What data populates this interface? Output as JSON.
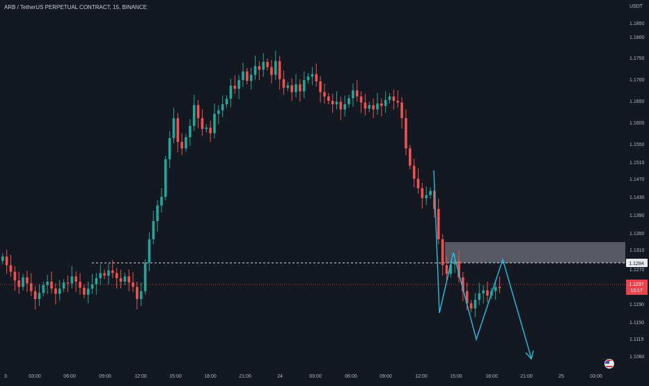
{
  "header": {
    "title": "ARB / TetherUS PERPETUAL CONTRACT, 15, BINANCE",
    "currency": "USDT"
  },
  "colors": {
    "background": "#141821",
    "up": "#26a69a",
    "down": "#ef5350",
    "axis_text": "#b2b7c2",
    "pattern": "#29b6d9",
    "zone": "#8c9099",
    "price_line": "#e8424b",
    "dashed_line": "#d8dbe0"
  },
  "chart_data": {
    "type": "candlestick",
    "price_axis": {
      "ticks": [
        "1.1850",
        "1.1800",
        "1.1750",
        "1.1700",
        "1.1650",
        "1.1600",
        "1.1550",
        "1.1510",
        "1.1470",
        "1.1430",
        "1.1390",
        "1.1350",
        "1.1310",
        "1.1270",
        "1.1190",
        "1.1150",
        "1.1115",
        "1.1080"
      ]
    },
    "time_axis": {
      "ticks": [
        "3",
        "03:00",
        "06:00",
        "09:00",
        "12:00",
        "15:00",
        "18:00",
        "21:00",
        "24",
        "03:00",
        "06:00",
        "09:00",
        "12:00",
        "15:00",
        "18:00",
        "21:00",
        "25",
        "03:00"
      ]
    },
    "current_price": {
      "value": "1.1237",
      "countdown": "13:17"
    },
    "level_line": {
      "value": "1.1284"
    },
    "zone": {
      "top": 1.1332,
      "bottom": 1.1284
    },
    "projection_path": [
      {
        "time": "13:15",
        "price": 1.1485
      },
      {
        "time": "13:30",
        "price": 1.1175
      },
      {
        "time": "14:45",
        "price": 1.13
      },
      {
        "time": "16:30",
        "price": 1.112
      },
      {
        "time": "18:15",
        "price": 1.1288
      },
      {
        "time": "20:45",
        "price": 1.1082
      }
    ],
    "closes": [
      1.131,
      1.129,
      1.1275,
      1.1255,
      1.124,
      1.1262,
      1.1248,
      1.123,
      1.1212,
      1.1226,
      1.1244,
      1.1252,
      1.1236,
      1.1224,
      1.1236,
      1.125,
      1.1248,
      1.1264,
      1.1252,
      1.1238,
      1.1222,
      1.1236,
      1.1246,
      1.126,
      1.1272,
      1.1266,
      1.1278,
      1.1272,
      1.126,
      1.1252,
      1.1264,
      1.125,
      1.124,
      1.1212,
      1.123,
      1.1296,
      1.135,
      1.1392,
      1.1428,
      1.1448,
      1.1535,
      1.1584,
      1.163,
      1.1575,
      1.156,
      1.1586,
      1.1612,
      1.166,
      1.163,
      1.1605,
      1.1608,
      1.1595,
      1.164,
      1.1648,
      1.1662,
      1.1675,
      1.1705,
      1.1698,
      1.1718,
      1.1738,
      1.1716,
      1.173,
      1.175,
      1.1742,
      1.176,
      1.1748,
      1.173,
      1.1762,
      1.172,
      1.17,
      1.1706,
      1.169,
      1.1708,
      1.1692,
      1.1718,
      1.1726,
      1.1732,
      1.1715,
      1.169,
      1.168,
      1.167,
      1.1662,
      1.1668,
      1.165,
      1.1662,
      1.1676,
      1.1694,
      1.168,
      1.1666,
      1.1652,
      1.166,
      1.165,
      1.1664,
      1.1658,
      1.1672,
      1.168,
      1.167,
      1.1666,
      1.163,
      1.156,
      1.152,
      1.149,
      1.1468,
      1.1445,
      1.1452,
      1.1462,
      1.142,
      1.135,
      1.129,
      1.127,
      1.1292,
      1.13,
      1.1262,
      1.123,
      1.1202,
      1.119,
      1.121,
      1.1225,
      1.1232,
      1.122,
      1.123,
      1.124,
      1.1237
    ]
  }
}
